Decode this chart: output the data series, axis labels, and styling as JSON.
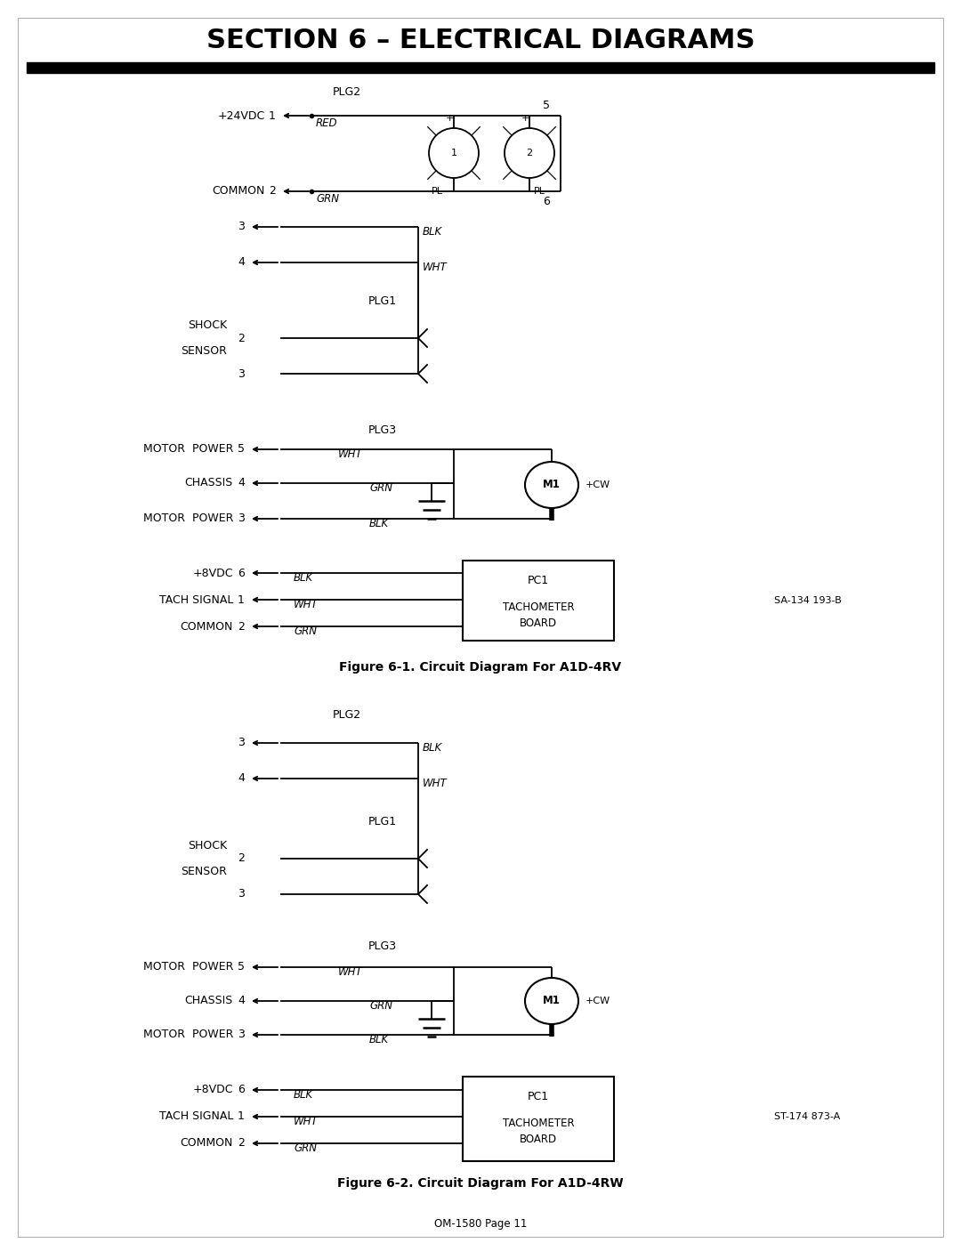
{
  "title": "SECTION 6 – ELECTRICAL DIAGRAMS",
  "fig1_caption": "Figure 6-1. Circuit Diagram For A1D-4RV",
  "fig2_caption": "Figure 6-2. Circuit Diagram For A1D-4RW",
  "ref1": "SA-134 193-B",
  "ref2": "ST-174 873-A",
  "page_ref": "OM-1580 Page 11",
  "bg_color": "#ffffff",
  "line_color": "#000000"
}
